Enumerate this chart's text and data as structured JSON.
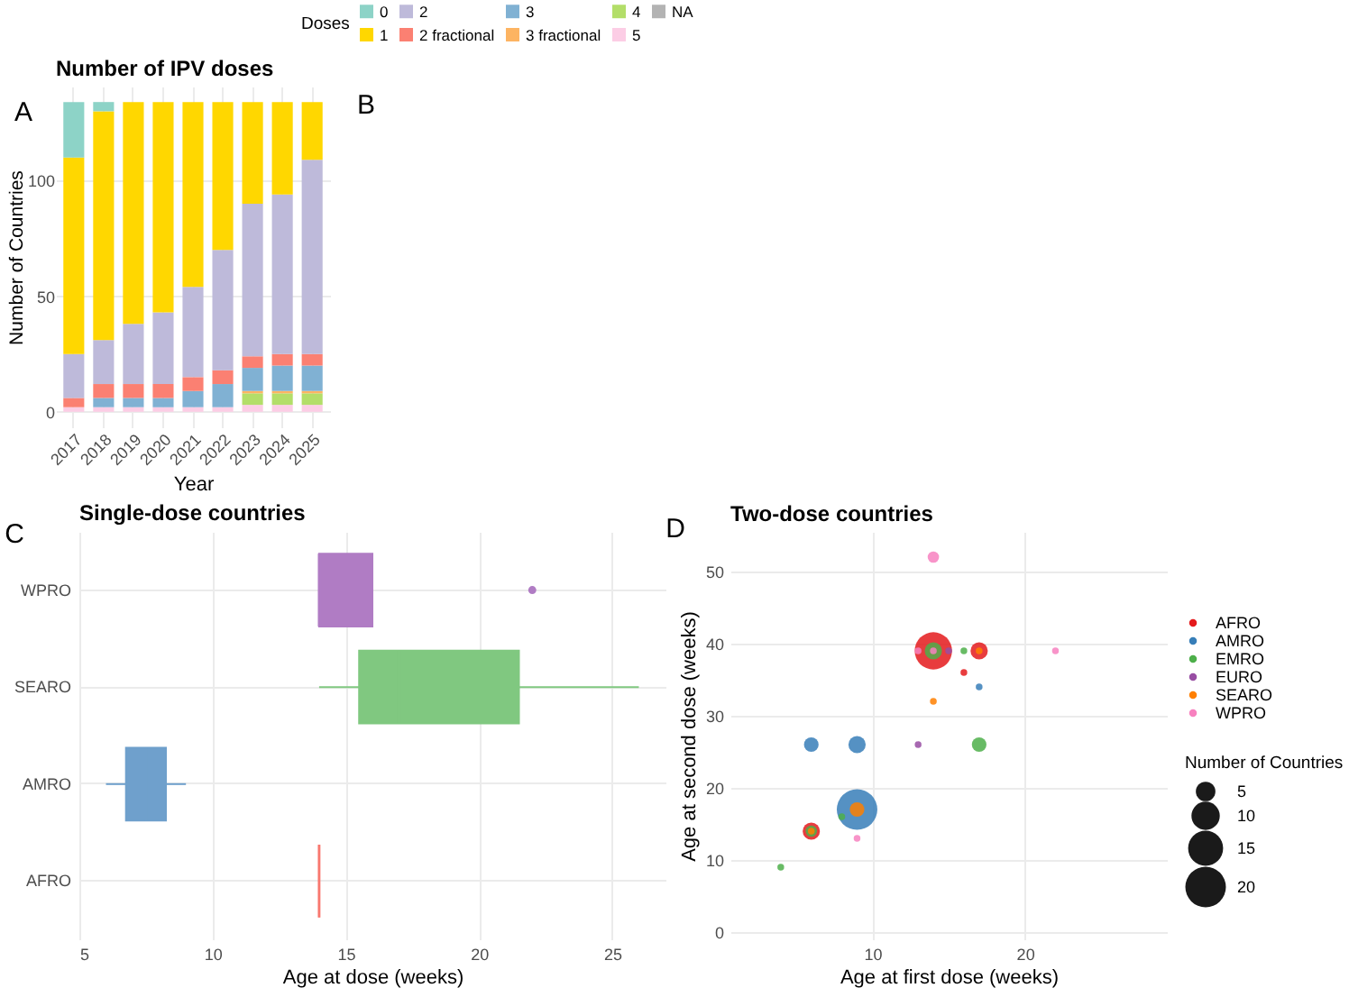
{
  "chart_data": [
    {
      "type": "bar",
      "title": "Number of IPV doses",
      "xlabel": "Year",
      "ylabel": "Number of Countries",
      "legend_title": "Doses",
      "legend": "top",
      "stacked": true,
      "grid": true,
      "annotations": [
        "A"
      ],
      "categories": [
        "2017",
        "2018",
        "2019",
        "2020",
        "2021",
        "2022",
        "2023",
        "2024",
        "2025"
      ],
      "series": [
        {
          "name": "NA",
          "color": "#b3b3b3",
          "values": [
            null,
            null,
            null,
            null,
            null,
            null,
            null,
            null,
            null
          ]
        },
        {
          "name": "5",
          "color": "#fccde5",
          "values": [
            2,
            2,
            2,
            2,
            2,
            2,
            3,
            3,
            3
          ]
        },
        {
          "name": "4",
          "color": "#b3de69",
          "values": [
            null,
            null,
            null,
            null,
            null,
            null,
            5,
            5,
            5
          ]
        },
        {
          "name": "3 fractional",
          "color": "#fdb462",
          "values": [
            null,
            null,
            null,
            null,
            null,
            null,
            1,
            1,
            1
          ]
        },
        {
          "name": "3",
          "color": "#80b1d3",
          "values": [
            null,
            4,
            4,
            4,
            7,
            10,
            10,
            11,
            11
          ]
        },
        {
          "name": "2 fractional",
          "color": "#fb8072",
          "values": [
            4,
            6,
            6,
            6,
            6,
            6,
            5,
            5,
            5
          ]
        },
        {
          "name": "2",
          "color": "#bebada",
          "values": [
            19,
            19,
            26,
            31,
            39,
            52,
            66,
            69,
            84
          ]
        },
        {
          "name": "1",
          "color": "#ffd700",
          "values": [
            85,
            99,
            96,
            91,
            80,
            64,
            44,
            40,
            25
          ]
        },
        {
          "name": "0",
          "color": "#8dd3c7",
          "values": [
            24,
            4,
            null,
            null,
            null,
            null,
            null,
            null,
            null
          ]
        }
      ],
      "ylim": [
        -6.7,
        140.7
      ],
      "yticks": [
        0,
        50,
        100
      ]
    },
    {
      "type": "other",
      "annotations": [
        "B"
      ]
    },
    {
      "type": "box",
      "title": "Single-dose countries",
      "xlabel": "Age at dose (weeks)",
      "orientation": "horizontal",
      "grid": true,
      "annotations": [
        "C"
      ],
      "categories": [
        "WPRO",
        "SEARO",
        "AMRO",
        "AFRO"
      ],
      "boxes": [
        {
          "low": 14,
          "q1": 14,
          "median": 14,
          "q3": 16,
          "high": 16,
          "outliers": [
            22
          ]
        },
        {
          "low": 14,
          "q1": 15.5,
          "median": 17,
          "q3": 21.5,
          "high": 26
        },
        {
          "low": 6,
          "q1": 6.75,
          "median": 7.5,
          "q3": 8.25,
          "high": 9
        },
        {
          "low": 14,
          "q1": 14,
          "median": 14,
          "q3": 14,
          "high": 14
        }
      ],
      "colors": [
        "#b07cc4",
        "#80c880",
        "#6fa0cc",
        "#f8766d"
      ],
      "xlim": [
        5,
        27
      ],
      "xticks": [
        5,
        10,
        15,
        20,
        25
      ]
    },
    {
      "type": "bubble",
      "title": "Two-dose countries",
      "xlabel": "Age at first dose (weeks)",
      "ylabel": "Age at second dose (weeks)",
      "legend_title": "Number of Countries",
      "legend": "right",
      "grid": true,
      "annotations": [
        "D"
      ],
      "series": [
        {
          "name": "AFRO",
          "color": "#e41a1c",
          "x": [
            6,
            14,
            16,
            17
          ],
          "values": [
            14,
            39,
            36,
            39
          ],
          "sizes": [
            4,
            17,
            1,
            4
          ]
        },
        {
          "name": "AMRO",
          "color": "#377eb8",
          "x": [
            6,
            9,
            9,
            17
          ],
          "values": [
            26,
            17,
            26,
            34
          ],
          "sizes": [
            3,
            20,
            4,
            1
          ]
        },
        {
          "name": "EMRO",
          "color": "#4daf4a",
          "x": [
            4,
            6,
            8,
            14,
            16,
            17
          ],
          "values": [
            9,
            14,
            16,
            39,
            39,
            26
          ],
          "sizes": [
            1,
            2,
            1,
            4,
            1,
            3
          ]
        },
        {
          "name": "EURO",
          "color": "#984ea3",
          "x": [
            13,
            15
          ],
          "values": [
            26,
            39
          ],
          "sizes": [
            1,
            1
          ]
        },
        {
          "name": "SEARO",
          "color": "#ff7f00",
          "x": [
            6,
            9,
            14,
            17
          ],
          "values": [
            14,
            17,
            32,
            39
          ],
          "sizes": [
            1,
            3,
            1,
            1
          ]
        },
        {
          "name": "WPRO",
          "color": "#f781bf",
          "x": [
            9,
            13,
            14,
            14,
            22
          ],
          "values": [
            13,
            39,
            39,
            52,
            39
          ],
          "sizes": [
            1,
            1,
            1,
            2,
            1
          ]
        }
      ],
      "size_legend": [
        5,
        10,
        15,
        20
      ],
      "xlim": [
        0.7,
        29.3
      ],
      "xticks": [
        10,
        20
      ],
      "ylim": [
        -1,
        55.5
      ],
      "yticks": [
        0,
        10,
        20,
        30,
        40,
        50
      ]
    }
  ]
}
